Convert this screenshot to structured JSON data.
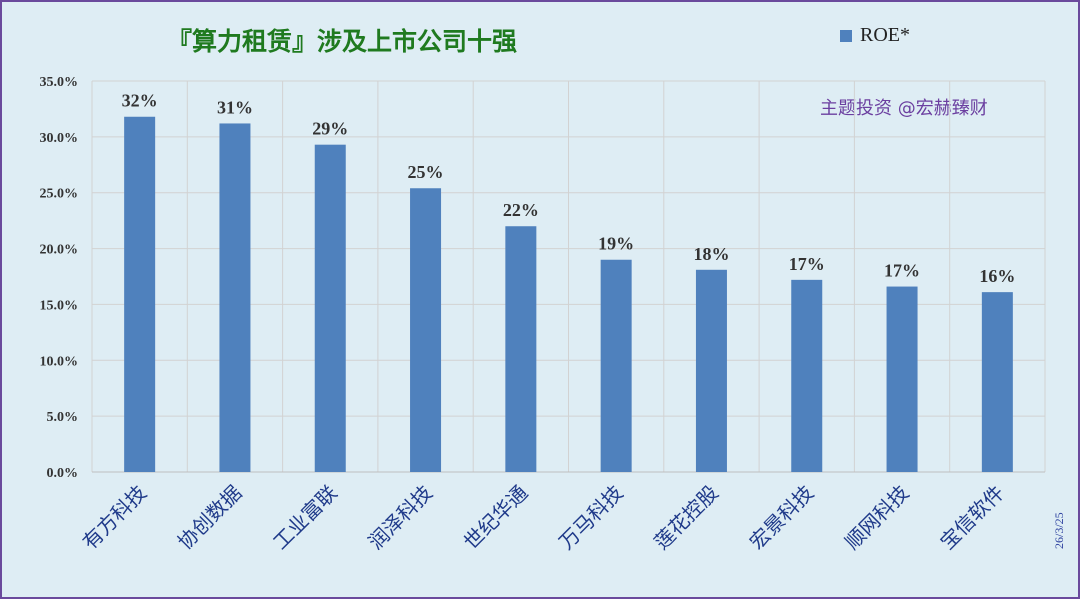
{
  "chart_data": {
    "type": "bar",
    "title": "『算力租赁』涉及上市公司十强",
    "categories": [
      "有方科技",
      "协创数据",
      "工业富联",
      "润泽科技",
      "世纪华通",
      "万马科技",
      "莲花控股",
      "宏景科技",
      "顺网科技",
      "宝信软件"
    ],
    "series": [
      {
        "name": "ROE*",
        "values": [
          31.8,
          31.2,
          29.3,
          25.4,
          22.0,
          19.0,
          18.1,
          17.2,
          16.6,
          16.1
        ],
        "data_labels": [
          "32%",
          "31%",
          "29%",
          "25%",
          "22%",
          "19%",
          "18%",
          "17%",
          "17%",
          "16%"
        ]
      }
    ],
    "ylim": [
      0,
      35
    ],
    "yticks": [
      "0.0%",
      "5.0%",
      "10.0%",
      "15.0%",
      "20.0%",
      "25.0%",
      "30.0%",
      "35.0%"
    ],
    "grid": true,
    "legend_position": "top-right"
  },
  "annotation": {
    "watermark": "主题投资 @宏赫臻财",
    "date": "26/3/25"
  },
  "colors": {
    "bar": "#4f81bd",
    "title": "#1f7a1f",
    "watermark": "#6b3fa0",
    "background": "#deedf4",
    "border": "#6a4a9c"
  }
}
